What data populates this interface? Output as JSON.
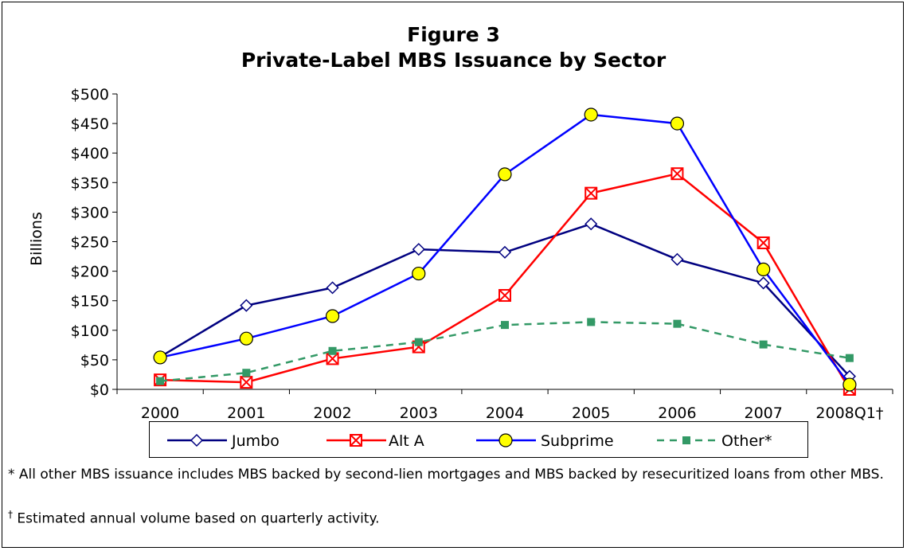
{
  "chart_data": {
    "type": "line",
    "title": "Figure 3",
    "subtitle": "Private-Label MBS Issuance by Sector",
    "ylabel": "Billions",
    "xlabel": "",
    "categories": [
      "2000",
      "2001",
      "2002",
      "2003",
      "2004",
      "2005",
      "2006",
      "2007",
      "2008Q1†"
    ],
    "ylim": [
      0,
      500
    ],
    "yticks": [
      "$0",
      "$50",
      "$100",
      "$150",
      "$200",
      "$250",
      "$300",
      "$350",
      "$400",
      "$450",
      "$500"
    ],
    "legend_position": "bottom",
    "grid": false,
    "series": [
      {
        "name": "Jumbo",
        "color": "#000080",
        "marker": "diamond",
        "dashed": false,
        "values": [
          55,
          142,
          172,
          237,
          232,
          280,
          220,
          180,
          22
        ]
      },
      {
        "name": "Alt A",
        "color": "#ff0000",
        "marker": "square-x",
        "dashed": false,
        "values": [
          16,
          12,
          52,
          72,
          159,
          332,
          365,
          248,
          0
        ]
      },
      {
        "name": "Subprime",
        "color": "#0000ff",
        "marker": "circle",
        "dashed": false,
        "values": [
          54,
          86,
          124,
          196,
          364,
          465,
          450,
          203,
          8
        ]
      },
      {
        "name": "Other*",
        "color": "#339966",
        "marker": "square",
        "dashed": true,
        "values": [
          14,
          28,
          65,
          80,
          109,
          114,
          111,
          76,
          53
        ]
      }
    ]
  },
  "footnotes": {
    "note1": "* All other MBS issuance includes MBS backed by second-lien mortgages and MBS backed by resecuritized loans from other MBS.",
    "note2_symbol": "†",
    "note2_text": " Estimated annual volume based on quarterly activity."
  }
}
